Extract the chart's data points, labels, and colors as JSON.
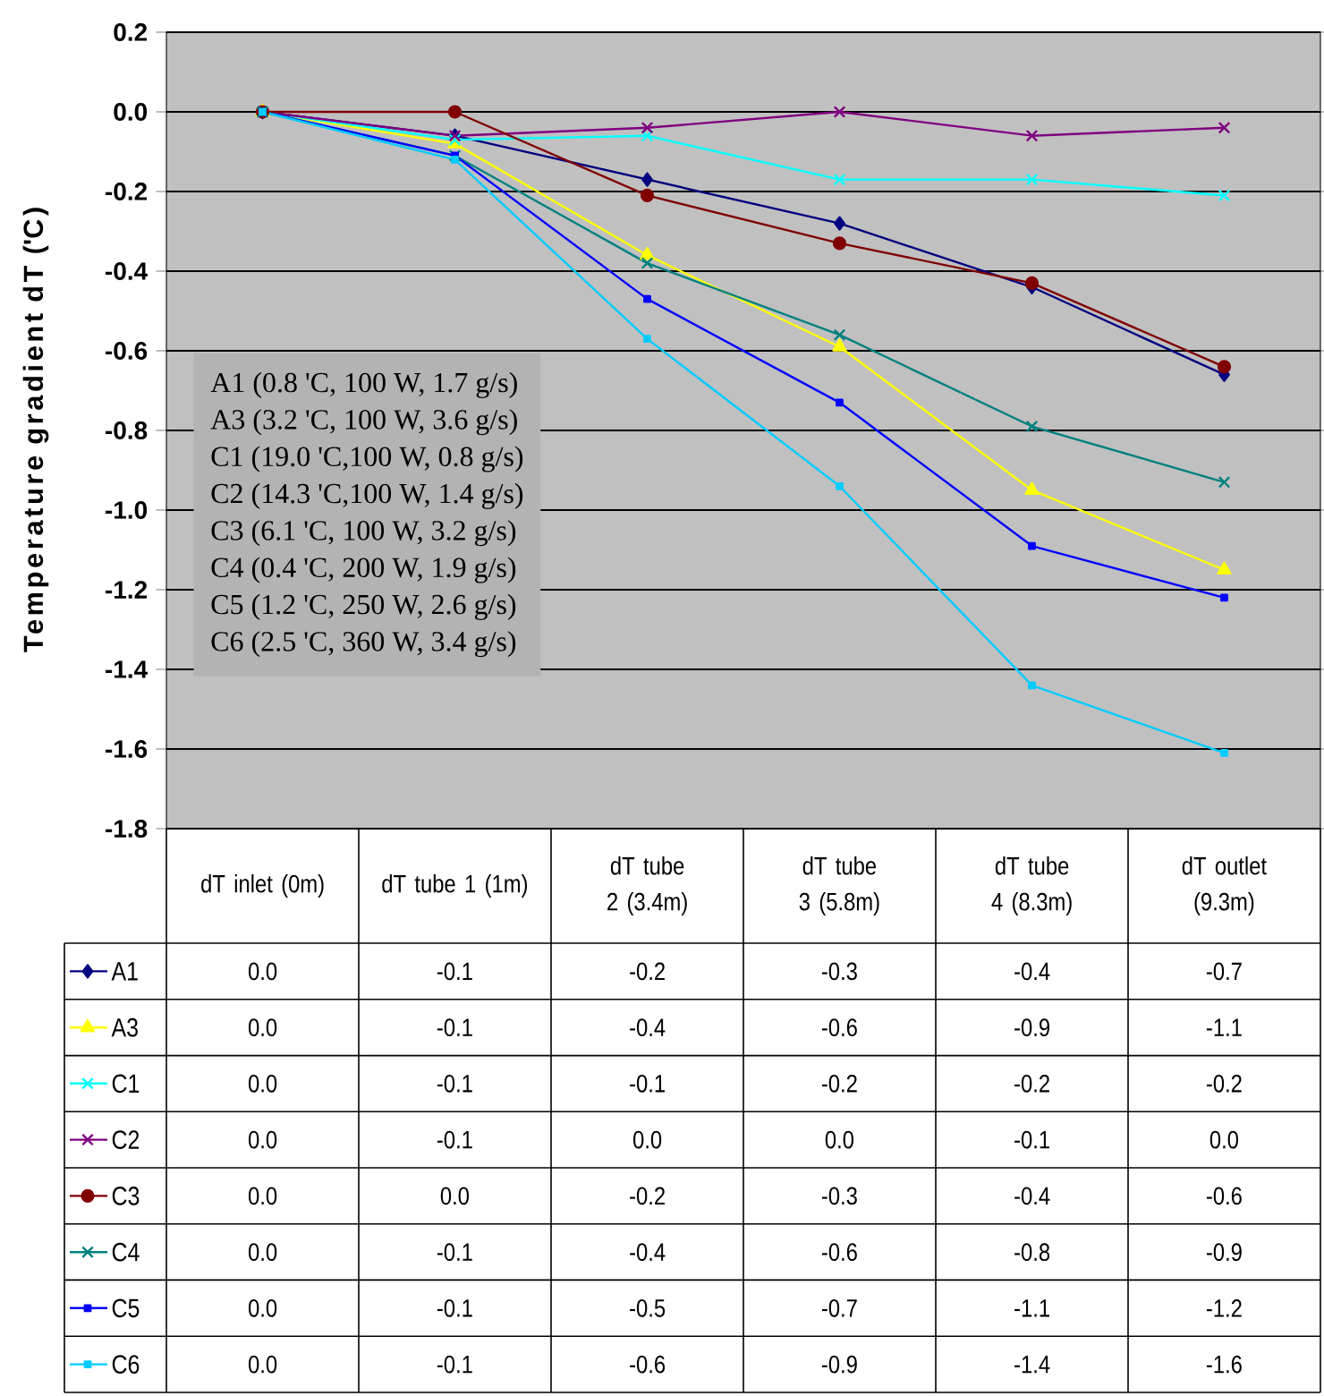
{
  "chart_data": {
    "type": "line",
    "ylabel": "Temperature gradient dT ('C)",
    "categories": [
      "dT inlet (0m)",
      "dT tube 1 (1m)",
      "dT tube 2 (3.4m)",
      "dT tube 3 (5.8m)",
      "dT tube 4 (8.3m)",
      "dT outlet (9.3m)"
    ],
    "ylim": [
      -1.8,
      0.2
    ],
    "yticks": [
      0.2,
      {
        "value": 0,
        "label": "0.0"
      },
      -0.2,
      -0.4,
      -0.6,
      -0.8,
      {
        "value": -1,
        "label": "-1.0"
      },
      -1.2,
      -1.4,
      -1.6,
      -1.8
    ],
    "grid": "y",
    "legend": "bottom",
    "series": [
      {
        "name": "A1",
        "color": "#000080",
        "marker": "diamond",
        "values": [
          0,
          -0.06,
          -0.17,
          -0.28,
          -0.44,
          -0.66
        ],
        "value_labels": [
          "0.0",
          "-0.1",
          "-0.2",
          "-0.3",
          "-0.4",
          "-0.7"
        ]
      },
      {
        "name": "A3",
        "color": "#ffff00",
        "marker": "triangle",
        "values": [
          0,
          -0.08,
          -0.36,
          -0.59,
          -0.95,
          -1.15
        ],
        "value_labels": [
          "0.0",
          "-0.1",
          "-0.4",
          "-0.6",
          "-0.9",
          "-1.1"
        ]
      },
      {
        "name": "C1",
        "color": "#00ffff",
        "marker": "cross",
        "values": [
          0,
          -0.07,
          -0.06,
          -0.17,
          -0.17,
          -0.21
        ],
        "value_labels": [
          "0.0",
          "-0.1",
          "-0.1",
          "-0.2",
          "-0.2",
          "-0.2"
        ]
      },
      {
        "name": "C2",
        "color": "#800080",
        "marker": "cross",
        "values": [
          0,
          -0.06,
          -0.04,
          0,
          -0.06,
          -0.04
        ],
        "value_labels": [
          "0.0",
          "-0.1",
          "0.0",
          "0.0",
          "-0.1",
          "0.0"
        ]
      },
      {
        "name": "C3",
        "color": "#800000",
        "marker": "circle",
        "values": [
          0,
          0.0,
          -0.21,
          -0.33,
          -0.43,
          -0.64
        ],
        "value_labels": [
          "0.0",
          "0.0",
          "-0.2",
          "-0.3",
          "-0.4",
          "-0.6"
        ]
      },
      {
        "name": "C4",
        "color": "#008080",
        "marker": "cross",
        "values": [
          0,
          -0.11,
          -0.38,
          -0.56,
          -0.79,
          -0.93
        ],
        "value_labels": [
          "0.0",
          "-0.1",
          "-0.4",
          "-0.6",
          "-0.8",
          "-0.9"
        ]
      },
      {
        "name": "C5",
        "color": "#0000ff",
        "marker": "square",
        "values": [
          0,
          -0.11,
          -0.47,
          -0.73,
          -1.09,
          -1.22
        ],
        "value_labels": [
          "0.0",
          "-0.1",
          "-0.5",
          "-0.7",
          "-1.1",
          "-1.2"
        ]
      },
      {
        "name": "C6",
        "color": "#00ccff",
        "marker": "square",
        "values": [
          0,
          -0.12,
          -0.57,
          -0.94,
          -1.44,
          -1.61
        ],
        "value_labels": [
          "0.0",
          "-0.1",
          "-0.6",
          "-0.9",
          "-1.4",
          "-1.6"
        ]
      }
    ],
    "annotations": [
      "A1 (0.8 'C, 100 W, 1.7 g/s)",
      "A3 (3.2 'C, 100 W, 3.6 g/s)",
      "C1 (19.0 'C,100 W, 0.8 g/s)",
      "C2 (14.3 'C,100 W, 1.4 g/s)",
      "C3 (6.1 'C, 100 W, 3.2 g/s)",
      "C4 (0.4 'C, 200 W, 1.9 g/s)",
      "C5 (1.2 'C, 250 W, 2.6 g/s)",
      "C6 (2.5 'C, 360 W, 3.4 g/s)"
    ]
  }
}
